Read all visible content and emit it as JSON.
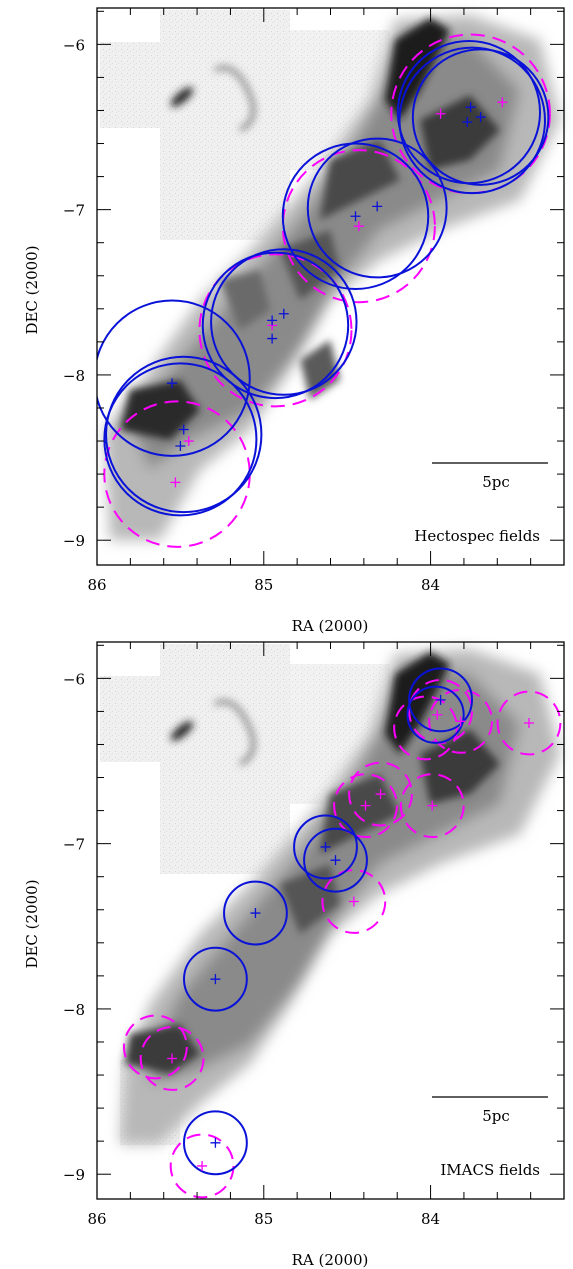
{
  "colors": {
    "observed_circle": "#0a12d8",
    "other_circle": "#ff00ff",
    "frame": "#000000"
  },
  "scale_bar_label": "5pc",
  "panels": [
    {
      "id": "hectospec",
      "label": "Hectospec fields",
      "xlabel": "RA (2000)",
      "ylabel": "DEC (2000)",
      "x_ticks": [
        "86",
        "85",
        "84"
      ],
      "y_ticks": [
        "−6",
        "−7",
        "−8",
        "−9"
      ],
      "ra_range": [
        86.0,
        83.2
      ],
      "dec_range": [
        -9.15,
        -5.78
      ],
      "blue_fields": [
        {
          "ra": 85.48,
          "dec": -8.36,
          "r": 0.47
        },
        {
          "ra": 85.5,
          "dec": -8.39,
          "r": 0.46
        },
        {
          "ra": 85.55,
          "dec": -8.02,
          "r": 0.47
        },
        {
          "ra": 84.93,
          "dec": -7.7,
          "r": 0.44
        },
        {
          "ra": 84.88,
          "dec": -7.68,
          "r": 0.44
        },
        {
          "ra": 84.45,
          "dec": -7.04,
          "r": 0.44
        },
        {
          "ra": 84.32,
          "dec": -6.99,
          "r": 0.42
        },
        {
          "ra": 83.77,
          "dec": -6.41,
          "r": 0.43
        },
        {
          "ra": 83.75,
          "dec": -6.46,
          "r": 0.44
        },
        {
          "ra": 83.7,
          "dec": -6.44,
          "r": 0.41
        }
      ],
      "magenta_fields": [
        {
          "ra": 85.52,
          "dec": -8.6,
          "r": 0.44
        },
        {
          "ra": 84.93,
          "dec": -7.73,
          "r": 0.46
        },
        {
          "ra": 84.43,
          "dec": -7.1,
          "r": 0.46
        },
        {
          "ra": 83.76,
          "dec": -6.42,
          "r": 0.48
        }
      ],
      "blue_centers": [
        {
          "ra": 85.55,
          "dec": -8.05
        },
        {
          "ra": 85.48,
          "dec": -8.33
        },
        {
          "ra": 85.5,
          "dec": -8.43
        },
        {
          "ra": 84.95,
          "dec": -7.67
        },
        {
          "ra": 84.88,
          "dec": -7.63
        },
        {
          "ra": 84.95,
          "dec": -7.78
        },
        {
          "ra": 84.45,
          "dec": -7.04
        },
        {
          "ra": 84.32,
          "dec": -6.98
        },
        {
          "ra": 83.76,
          "dec": -6.38
        },
        {
          "ra": 83.78,
          "dec": -6.47
        },
        {
          "ra": 83.7,
          "dec": -6.44
        }
      ],
      "magenta_centers": [
        {
          "ra": 85.53,
          "dec": -8.65
        },
        {
          "ra": 85.45,
          "dec": -8.4
        },
        {
          "ra": 84.95,
          "dec": -7.7
        },
        {
          "ra": 84.43,
          "dec": -7.1
        },
        {
          "ra": 83.94,
          "dec": -6.42
        },
        {
          "ra": 83.57,
          "dec": -6.35
        }
      ]
    },
    {
      "id": "imacs",
      "label": "IMACS fields",
      "xlabel": "RA (2000)",
      "ylabel": "DEC (2000)",
      "x_ticks": [
        "86",
        "85",
        "84"
      ],
      "y_ticks": [
        "−6",
        "−7",
        "−8",
        "−9"
      ],
      "ra_range": [
        86.0,
        83.2
      ],
      "dec_range": [
        -9.15,
        -5.78
      ],
      "blue_fields": [
        {
          "ra": 83.94,
          "dec": -6.13,
          "r": 0.19
        },
        {
          "ra": 83.97,
          "dec": -6.22,
          "r": 0.17
        },
        {
          "ra": 84.63,
          "dec": -7.02,
          "r": 0.19
        },
        {
          "ra": 84.57,
          "dec": -7.1,
          "r": 0.19
        },
        {
          "ra": 85.05,
          "dec": -7.42,
          "r": 0.19
        },
        {
          "ra": 85.29,
          "dec": -7.82,
          "r": 0.19
        },
        {
          "ra": 85.29,
          "dec": -8.81,
          "r": 0.19
        }
      ],
      "magenta_fields": [
        {
          "ra": 83.41,
          "dec": -6.27,
          "r": 0.19
        },
        {
          "ra": 83.82,
          "dec": -6.26,
          "r": 0.19
        },
        {
          "ra": 83.94,
          "dec": -6.2,
          "r": 0.19
        },
        {
          "ra": 84.03,
          "dec": -6.3,
          "r": 0.19
        },
        {
          "ra": 84.39,
          "dec": -6.77,
          "r": 0.19
        },
        {
          "ra": 84.3,
          "dec": -6.7,
          "r": 0.19
        },
        {
          "ra": 83.99,
          "dec": -6.77,
          "r": 0.19
        },
        {
          "ra": 84.46,
          "dec": -7.35,
          "r": 0.19
        },
        {
          "ra": 85.65,
          "dec": -8.23,
          "r": 0.19
        },
        {
          "ra": 85.55,
          "dec": -8.3,
          "r": 0.19
        },
        {
          "ra": 85.37,
          "dec": -8.95,
          "r": 0.19
        }
      ],
      "blue_centers": [
        {
          "ra": 83.94,
          "dec": -6.13
        },
        {
          "ra": 84.63,
          "dec": -7.02
        },
        {
          "ra": 84.57,
          "dec": -7.1
        },
        {
          "ra": 85.05,
          "dec": -7.42
        },
        {
          "ra": 85.29,
          "dec": -7.82
        },
        {
          "ra": 85.29,
          "dec": -8.81
        }
      ],
      "magenta_centers": [
        {
          "ra": 83.41,
          "dec": -6.27
        },
        {
          "ra": 83.82,
          "dec": -6.26
        },
        {
          "ra": 83.96,
          "dec": -6.22
        },
        {
          "ra": 84.39,
          "dec": -6.77
        },
        {
          "ra": 84.3,
          "dec": -6.7
        },
        {
          "ra": 83.99,
          "dec": -6.77
        },
        {
          "ra": 84.46,
          "dec": -7.35
        },
        {
          "ra": 85.55,
          "dec": -8.3
        },
        {
          "ra": 85.37,
          "dec": -8.95
        }
      ]
    }
  ]
}
